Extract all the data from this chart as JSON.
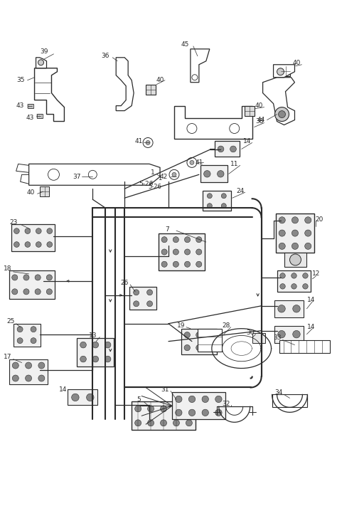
{
  "bg": "#ffffff",
  "lc": "#2a2a2a",
  "fig_w": 4.74,
  "fig_h": 7.11,
  "dpi": 100
}
